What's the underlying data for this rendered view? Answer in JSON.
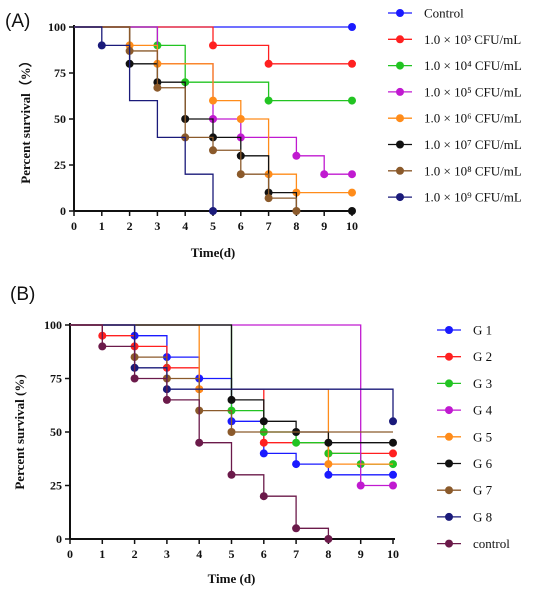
{
  "chart_data": [
    {
      "panel": "(A)",
      "type": "line",
      "step": true,
      "xlabel": "Time(d)",
      "ylabel": "Percent survival（%）",
      "xlim": [
        0,
        10
      ],
      "ylim": [
        0,
        100
      ],
      "xticks": [
        0,
        1,
        2,
        3,
        4,
        5,
        6,
        7,
        8,
        9,
        10
      ],
      "yticks": [
        0,
        25,
        50,
        75,
        100
      ],
      "legend": "right",
      "series": [
        {
          "name": "Control",
          "color": "#1a1aff",
          "x": [
            0,
            10
          ],
          "y": [
            100,
            100
          ],
          "markers_x": [
            10
          ],
          "markers_y": [
            100
          ]
        },
        {
          "name": "1.0 × 10³ CFU/mL",
          "color": "#ff2020",
          "x": [
            0,
            5,
            7,
            10
          ],
          "y": [
            100,
            90,
            80,
            80
          ],
          "markers_x": [
            5,
            7,
            10
          ],
          "markers_y": [
            90,
            80,
            80
          ]
        },
        {
          "name": "1.0 × 10⁴ CFU/mL",
          "color": "#22c422",
          "x": [
            0,
            3,
            4,
            7,
            10
          ],
          "y": [
            100,
            90,
            70,
            60,
            60
          ],
          "markers_x": [
            3,
            4,
            7,
            10
          ],
          "markers_y": [
            90,
            70,
            60,
            60
          ]
        },
        {
          "name": "1.0 × 10⁵ CFU/mL",
          "color": "#c01ad0",
          "x": [
            0,
            3,
            5,
            6,
            8,
            9,
            10
          ],
          "y": [
            100,
            80,
            50,
            40,
            30,
            20,
            20
          ],
          "markers_x": [
            5,
            6,
            8,
            9,
            10
          ],
          "markers_y": [
            50,
            40,
            30,
            20,
            20
          ]
        },
        {
          "name": "1.0 × 10⁶ CFU/mL",
          "color": "#ff8c1a",
          "x": [
            0,
            2,
            3,
            5,
            6,
            7,
            8,
            10
          ],
          "y": [
            100,
            90,
            80,
            60,
            50,
            20,
            10,
            10
          ],
          "markers_x": [
            2,
            3,
            5,
            6,
            7,
            8,
            10
          ],
          "markers_y": [
            90,
            80,
            60,
            50,
            20,
            10,
            10
          ]
        },
        {
          "name": "1.0 × 10⁷ CFU/mL",
          "color": "#111111",
          "x": [
            0,
            2,
            3,
            4,
            5,
            6,
            7,
            8,
            10
          ],
          "y": [
            100,
            80,
            70,
            50,
            40,
            30,
            10,
            0,
            0
          ],
          "markers_x": [
            2,
            3,
            4,
            5,
            6,
            7,
            10
          ],
          "markers_y": [
            80,
            70,
            50,
            40,
            30,
            10,
            0
          ]
        },
        {
          "name": "1.0 × 10⁸ CFU/mL",
          "color": "#8b5a2b",
          "x": [
            0,
            2,
            3,
            4,
            5,
            6,
            7,
            8
          ],
          "y": [
            100,
            87,
            67,
            40,
            33,
            20,
            7,
            0
          ],
          "markers_x": [
            2,
            3,
            4,
            5,
            6,
            7,
            8
          ],
          "markers_y": [
            87,
            67,
            40,
            33,
            20,
            7,
            0
          ]
        },
        {
          "name": "1.0 × 10⁹ CFU/mL",
          "color": "#1a1a7a",
          "x": [
            0,
            1,
            2,
            3,
            4,
            5
          ],
          "y": [
            100,
            90,
            60,
            40,
            20,
            0
          ],
          "markers_x": [
            1,
            5
          ],
          "markers_y": [
            90,
            0
          ]
        }
      ]
    },
    {
      "panel": "(B)",
      "type": "line",
      "step": true,
      "xlabel": "Time (d)",
      "ylabel": "Percent survival (%)",
      "xlim": [
        0,
        10
      ],
      "ylim": [
        0,
        100
      ],
      "xticks": [
        0,
        1,
        2,
        3,
        4,
        5,
        6,
        7,
        8,
        9,
        10
      ],
      "yticks": [
        0,
        25,
        50,
        75,
        100
      ],
      "legend": "right",
      "series": [
        {
          "name": "G 1",
          "color": "#1a1aff",
          "x": [
            0,
            2,
            3,
            4,
            5,
            6,
            7,
            8,
            10
          ],
          "y": [
            100,
            95,
            85,
            75,
            55,
            40,
            35,
            30,
            30
          ],
          "markers_x": [
            2,
            3,
            4,
            5,
            6,
            7,
            8,
            10
          ],
          "markers_y": [
            95,
            85,
            75,
            55,
            40,
            35,
            30,
            30
          ]
        },
        {
          "name": "G 2",
          "color": "#ff2020",
          "x": [
            0,
            1,
            2,
            3,
            4,
            6,
            8,
            10
          ],
          "y": [
            100,
            95,
            90,
            80,
            70,
            45,
            40,
            40
          ],
          "markers_x": [
            1,
            2,
            3,
            4,
            6,
            8,
            10
          ],
          "markers_y": [
            95,
            90,
            80,
            70,
            45,
            40,
            40
          ]
        },
        {
          "name": "G 3",
          "color": "#22c422",
          "x": [
            0,
            5,
            6,
            7,
            8,
            9,
            10
          ],
          "y": [
            100,
            60,
            50,
            45,
            40,
            35,
            35
          ],
          "markers_x": [
            5,
            6,
            7,
            8,
            9,
            10
          ],
          "markers_y": [
            60,
            50,
            45,
            40,
            35,
            35
          ]
        },
        {
          "name": "G 4",
          "color": "#c01ad0",
          "x": [
            0,
            9,
            10
          ],
          "y": [
            100,
            25,
            25
          ],
          "markers_x": [
            9,
            10
          ],
          "markers_y": [
            25,
            25
          ]
        },
        {
          "name": "G 5",
          "color": "#ff8c1a",
          "x": [
            0,
            4,
            8,
            10
          ],
          "y": [
            100,
            70,
            35,
            35
          ],
          "markers_x": [
            4,
            8
          ],
          "markers_y": [
            70,
            35
          ]
        },
        {
          "name": "G 6",
          "color": "#111111",
          "x": [
            0,
            5,
            6,
            7,
            8,
            10
          ],
          "y": [
            100,
            65,
            55,
            50,
            45,
            45
          ],
          "markers_x": [
            5,
            6,
            7,
            8,
            10
          ],
          "markers_y": [
            65,
            55,
            50,
            45,
            45
          ]
        },
        {
          "name": "G 7",
          "color": "#8b5a2b",
          "x": [
            0,
            2,
            3,
            4,
            5,
            10
          ],
          "y": [
            100,
            85,
            75,
            60,
            50,
            50
          ],
          "markers_x": [
            2,
            3,
            4,
            5
          ],
          "markers_y": [
            85,
            75,
            60,
            50
          ]
        },
        {
          "name": "G 8",
          "color": "#1a1a7a",
          "x": [
            0,
            2,
            3,
            10
          ],
          "y": [
            100,
            80,
            70,
            55
          ],
          "markers_x": [
            2,
            3,
            10
          ],
          "markers_y": [
            80,
            70,
            55
          ]
        },
        {
          "name": "control",
          "color": "#6b1a4a",
          "x": [
            0,
            1,
            2,
            3,
            4,
            5,
            6,
            7,
            8
          ],
          "y": [
            100,
            90,
            75,
            65,
            45,
            30,
            20,
            5,
            0
          ],
          "markers_x": [
            1,
            2,
            3,
            4,
            5,
            6,
            7,
            8
          ],
          "markers_y": [
            90,
            75,
            65,
            45,
            30,
            20,
            5,
            0
          ]
        }
      ]
    }
  ]
}
